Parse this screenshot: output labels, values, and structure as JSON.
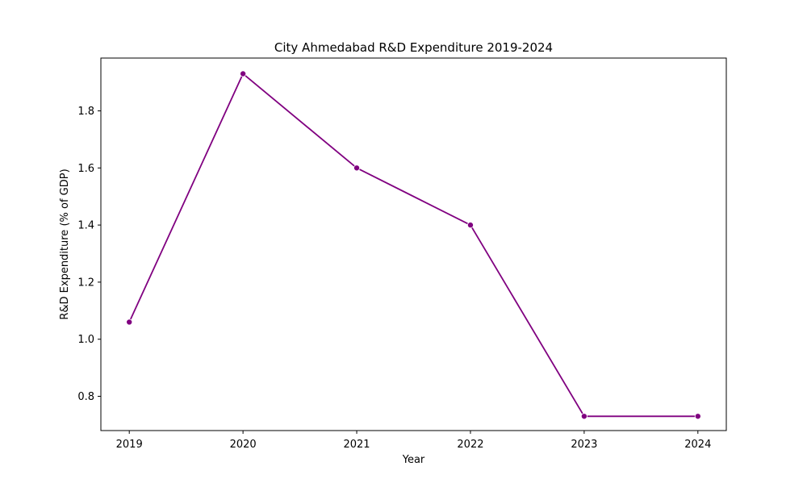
{
  "chart_data": {
    "type": "line",
    "title": "City Ahmedabad R&D Expenditure 2019-2024",
    "xlabel": "Year",
    "ylabel": "R&D Expenditure (% of GDP)",
    "x": [
      "2019",
      "2020",
      "2021",
      "2022",
      "2023",
      "2024"
    ],
    "series": [
      {
        "values": [
          1.06,
          1.93,
          1.6,
          1.4,
          0.73,
          0.73
        ],
        "color": "#800080",
        "marker": "circle"
      }
    ],
    "yticks": [
      "0.8",
      "1.0",
      "1.2",
      "1.4",
      "1.6",
      "1.8"
    ],
    "ylim": [
      0.68,
      1.985
    ],
    "grid": false,
    "legend": "none"
  }
}
